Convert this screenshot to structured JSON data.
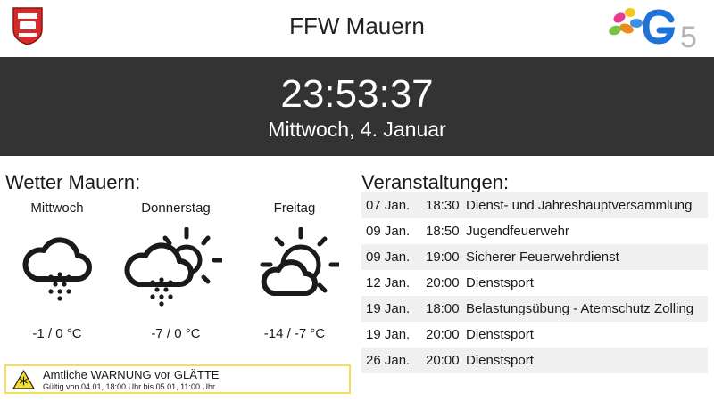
{
  "header": {
    "title": "FFW Mauern"
  },
  "clock": {
    "time": "23:53:37",
    "date": "Mittwoch, 4. Januar"
  },
  "weather": {
    "title": "Wetter Mauern:",
    "days": [
      {
        "name": "Mittwoch",
        "icon": "snow-cloud-icon",
        "temp": "-1 / 0 °C"
      },
      {
        "name": "Donnerstag",
        "icon": "sun-cloud-snow-icon",
        "temp": "-7 / 0 °C"
      },
      {
        "name": "Freitag",
        "icon": "sun-cloud-icon",
        "temp": "-14 / -7 °C"
      }
    ],
    "warning": {
      "title": "Amtliche WARNUNG vor GLÄTTE",
      "validity": "Gültig von 04.01, 18:00 Uhr bis 05.01, 11:00 Uhr",
      "border_color": "#f2df55"
    }
  },
  "events": {
    "title": "Veranstaltungen:",
    "items": [
      {
        "date": "07 Jan.",
        "time": "18:30",
        "name": "Dienst- und Jahreshauptversammlung"
      },
      {
        "date": "09 Jan.",
        "time": "18:50",
        "name": "Jugendfeuerwehr"
      },
      {
        "date": "09 Jan.",
        "time": "19:00",
        "name": "Sicherer Feuerwehrdienst"
      },
      {
        "date": "12 Jan.",
        "time": "20:00",
        "name": "Dienstsport"
      },
      {
        "date": "19 Jan.",
        "time": "18:00",
        "name": "Belastungsübung - Atemschutz Zolling"
      },
      {
        "date": "19 Jan.",
        "time": "20:00",
        "name": "Dienstsport"
      },
      {
        "date": "26 Jan.",
        "time": "20:00",
        "name": "Dienstsport"
      }
    ]
  },
  "colors": {
    "clock_bg": "#333333",
    "accent_red": "#d42a2a",
    "row_alt": "#f0f0f0"
  }
}
